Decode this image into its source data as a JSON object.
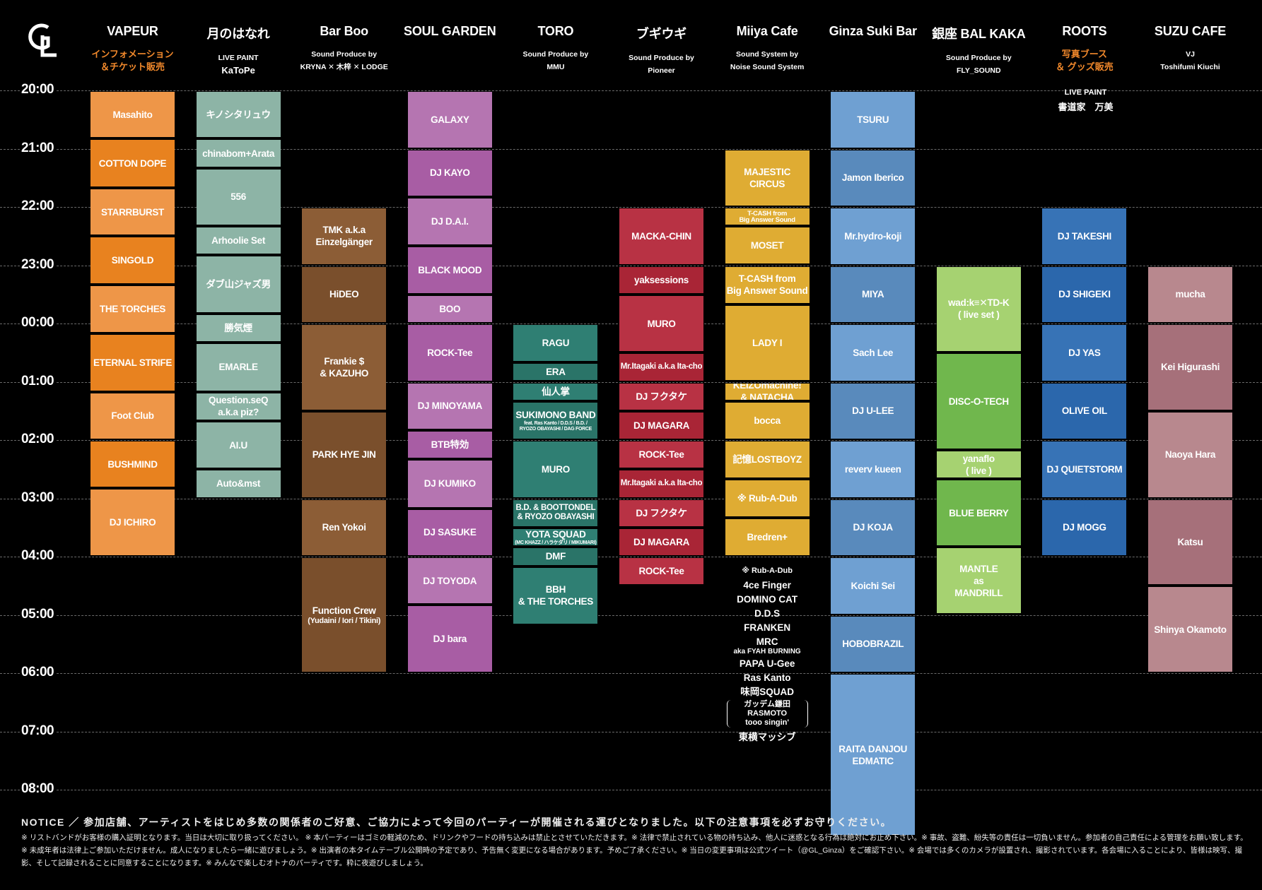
{
  "logo": "GL",
  "venues": [
    {
      "key": "vapeur",
      "name": "VAPEUR",
      "sub": "インフォメーション\n＆チケット販売",
      "sub_style": "orange",
      "color": "#e8821f",
      "light": "#ee9648"
    },
    {
      "key": "tsukinohanare",
      "name": "月のはなれ",
      "sub": "LIVE PAINT\nKaToPe",
      "sub_style": "paint",
      "color": "#8fb7a8"
    },
    {
      "key": "barboo",
      "name": "Bar Boo",
      "sub": "Sound Produce by\nKRYNA ✕ 木梓 ✕ LODGE",
      "sub_style": "small",
      "color": "#7a4f2c",
      "light": "#8c5d36"
    },
    {
      "key": "soulgarden",
      "name": "SOUL GARDEN",
      "sub": "",
      "color": "#a85da4",
      "light": "#b575b1"
    },
    {
      "key": "toro",
      "name": "TORO",
      "sub": "Sound Produce by\nMMU",
      "sub_style": "small",
      "color": "#2e7d71",
      "light": "#3a8c80"
    },
    {
      "key": "bugiugi",
      "name": "ブギウギ",
      "sub": "Sound Produce by\nPioneer",
      "sub_style": "small",
      "color": "#b3283a",
      "light": "#c44452"
    },
    {
      "key": "miiya",
      "name": "Miiya Cafe",
      "sub": "Sound System by\nNoise Sound System",
      "sub_style": "small",
      "color": "#dfac33",
      "light": "#e6bb4f"
    },
    {
      "key": "ginzasuki",
      "name": "Ginza Suki Bar",
      "sub": "",
      "color": "#6fa0d2",
      "light": "#85aedb"
    },
    {
      "key": "balkaka",
      "name": "銀座 BAL KAKA",
      "sub": "Sound Produce by\nFLY_SOUND",
      "sub_style": "small",
      "color": "#70b74d",
      "light": "#a6d271"
    },
    {
      "key": "roots",
      "name": "ROOTS",
      "sub": "写真ブース\n＆ グッズ販売",
      "sub_style": "orange",
      "color": "#2b67ac",
      "light": "#3773b6"
    },
    {
      "key": "suzu",
      "name": "SUZU CAFE",
      "sub": "VJ\nToshifumi Kiuchi",
      "sub_style": "small",
      "color": "#a6707a",
      "light": "#b8888e"
    }
  ],
  "roots_paint": {
    "label": "LIVE PAINT",
    "artist": "書道家　万美"
  },
  "times": [
    "20:00",
    "21:00",
    "22:00",
    "23:00",
    "00:00",
    "01:00",
    "02:00",
    "03:00",
    "04:00",
    "05:00",
    "06:00",
    "07:00",
    "08:00"
  ],
  "timetable": {
    "vapeur": [
      {
        "name": "Masahito",
        "start": 0,
        "end": 0.83,
        "shade": "light"
      },
      {
        "name": "COTTON DOPE",
        "start": 0.83,
        "end": 1.67
      },
      {
        "name": "STARRBURST",
        "start": 1.67,
        "end": 2.5,
        "shade": "light"
      },
      {
        "name": "SINGOLD",
        "start": 2.5,
        "end": 3.33
      },
      {
        "name": "THE TORCHES",
        "start": 3.33,
        "end": 4.17,
        "shade": "light"
      },
      {
        "name": "ETERNAL STRIFE",
        "start": 4.17,
        "end": 5.17
      },
      {
        "name": "Foot Club",
        "start": 5.17,
        "end": 6.0,
        "shade": "light"
      },
      {
        "name": "BUSHMIND",
        "start": 6.0,
        "end": 6.83
      },
      {
        "name": "DJ ICHIRO",
        "start": 6.83,
        "end": 8.0,
        "shade": "light"
      }
    ],
    "tsukinohanare": [
      {
        "name": "キノシタリュウ",
        "start": 0,
        "end": 0.83
      },
      {
        "name": "chinabom+Arata",
        "start": 0.83,
        "end": 1.33
      },
      {
        "name": "556",
        "start": 1.33,
        "end": 2.33
      },
      {
        "name": "Arhoolie Set",
        "start": 2.33,
        "end": 2.83
      },
      {
        "name": "ダブ山ジャズ男",
        "start": 2.83,
        "end": 3.83
      },
      {
        "name": "勝気煙",
        "start": 3.83,
        "end": 4.33
      },
      {
        "name": "EMARLE",
        "start": 4.33,
        "end": 5.17
      },
      {
        "name": "Question.seQ\na.k.a piz?",
        "start": 5.17,
        "end": 5.67
      },
      {
        "name": "AI.U",
        "start": 5.67,
        "end": 6.5
      },
      {
        "name": "Auto&mst",
        "start": 6.5,
        "end": 7.0
      }
    ],
    "barboo": [
      {
        "name": "TMK a.k.a\nEinzelgänger",
        "start": 2,
        "end": 3,
        "shade": "light"
      },
      {
        "name": "HiDEO",
        "start": 3,
        "end": 4
      },
      {
        "name": "Frankie $\n& KAZUHO",
        "start": 4,
        "end": 5.5,
        "shade": "light"
      },
      {
        "name": "PARK HYE JIN",
        "start": 5.5,
        "end": 7
      },
      {
        "name": "Ren Yokoi",
        "start": 7,
        "end": 8,
        "shade": "light"
      },
      {
        "name": "Function Crew",
        "sub": "(Yudaini / Iori / Tikini)",
        "start": 8,
        "end": 10
      }
    ],
    "soulgarden": [
      {
        "name": "GALAXY",
        "start": 0,
        "end": 1,
        "shade": "light"
      },
      {
        "name": "DJ KAYO",
        "start": 1,
        "end": 1.83
      },
      {
        "name": "DJ D.A.I.",
        "start": 1.83,
        "end": 2.67,
        "shade": "light"
      },
      {
        "name": "BLACK MOOD",
        "start": 2.67,
        "end": 3.5
      },
      {
        "name": "BOO",
        "start": 3.5,
        "end": 4,
        "shade": "light"
      },
      {
        "name": "ROCK-Tee",
        "start": 4,
        "end": 5
      },
      {
        "name": "DJ MINOYAMA",
        "start": 5,
        "end": 5.83,
        "shade": "light"
      },
      {
        "name": "BTB特効",
        "start": 5.83,
        "end": 6.33
      },
      {
        "name": "DJ KUMIKO",
        "start": 6.33,
        "end": 7.17,
        "shade": "light"
      },
      {
        "name": "DJ SASUKE",
        "start": 7.17,
        "end": 8
      },
      {
        "name": "DJ TOYODA",
        "start": 8,
        "end": 8.83,
        "shade": "light"
      },
      {
        "name": "DJ bara",
        "start": 8.83,
        "end": 10
      }
    ],
    "toro": [
      {
        "name": "RAGU",
        "start": 4,
        "end": 4.67
      },
      {
        "name": "ERA",
        "start": 4.67,
        "end": 5
      },
      {
        "name": "仙人掌",
        "start": 5,
        "end": 5.33
      },
      {
        "name": "SUKIMONO BAND",
        "sub": "feat. Ras Kanto / D.D.S / B.D. /\nRYOZO OBAYASHI / DAG FORCE",
        "start": 5.33,
        "end": 6
      },
      {
        "name": "MURO",
        "start": 6,
        "end": 7
      },
      {
        "name": "B.D. & BOOTTONDEL\n& RYOZO OBAYASHI",
        "start": 7,
        "end": 7.5,
        "small": true
      },
      {
        "name": "YOTA SQUAD",
        "sub": "(MC KHAZZ / ハラケダリ / MIKUMARI)",
        "start": 7.5,
        "end": 7.83
      },
      {
        "name": "DMF",
        "start": 7.83,
        "end": 8.17
      },
      {
        "name": "BBH\n& THE TORCHES",
        "start": 8.17,
        "end": 9.17
      }
    ],
    "bugiugi": [
      {
        "name": "MACKA-CHIN",
        "start": 2,
        "end": 3
      },
      {
        "name": "yaksessions",
        "start": 3,
        "end": 3.5
      },
      {
        "name": "MURO",
        "start": 3.5,
        "end": 4.5
      },
      {
        "name": "Mr.Itagaki a.k.a Ita-cho",
        "start": 4.5,
        "end": 5,
        "small": true
      },
      {
        "name": "DJ フクタケ",
        "start": 5,
        "end": 5.5
      },
      {
        "name": "DJ MAGARA",
        "start": 5.5,
        "end": 6
      },
      {
        "name": "ROCK-Tee",
        "start": 6,
        "end": 6.5
      },
      {
        "name": "Mr.Itagaki a.k.a Ita-cho",
        "start": 6.5,
        "end": 7,
        "small": true
      },
      {
        "name": "DJ フクタケ",
        "start": 7,
        "end": 7.5
      },
      {
        "name": "DJ MAGARA",
        "start": 7.5,
        "end": 8
      },
      {
        "name": "ROCK-Tee",
        "start": 8,
        "end": 8.5
      }
    ],
    "miiya": [
      {
        "name": "MAJESTIC\nCIRCUS",
        "start": 1,
        "end": 2
      },
      {
        "name": "T-CASH from\nBig Answer Sound",
        "start": 2,
        "end": 2.33,
        "tiny": true
      },
      {
        "name": "MOSET",
        "start": 2.33,
        "end": 3
      },
      {
        "name": "T-CASH from\nBig Answer Sound",
        "start": 3,
        "end": 3.67
      },
      {
        "name": "LADY I",
        "start": 3.67,
        "end": 5
      },
      {
        "name": "KEIZOmachine!\n& NATACHA",
        "start": 5,
        "end": 5.33
      },
      {
        "name": "bocca",
        "start": 5.33,
        "end": 6
      },
      {
        "name": "記憶LOSTBOYZ",
        "start": 6,
        "end": 6.67
      },
      {
        "name": "※ Rub-A-Dub",
        "start": 6.67,
        "end": 7.33
      },
      {
        "name": "Bredren+",
        "start": 7.33,
        "end": 8
      }
    ],
    "miiya_after": [
      {
        "name": "※ Rub-A-Dub",
        "small": true
      },
      {
        "name": "4ce Finger"
      },
      {
        "name": "DOMINO CAT"
      },
      {
        "name": "D.D.S"
      },
      {
        "name": "FRANKEN"
      },
      {
        "name": "MRC",
        "sub": "aka FYAH BURNING"
      },
      {
        "name": "PAPA U-Gee"
      },
      {
        "name": "Ras Kanto"
      },
      {
        "name": "味岡SQUAD"
      },
      {
        "name": "ガッデム鎌田\nRASMOTO\ntooo singin'",
        "bracket": true
      },
      {
        "name": "東横マッシブ"
      }
    ],
    "ginzasuki": [
      {
        "name": "TSURU",
        "start": 0,
        "end": 1
      },
      {
        "name": "Jamon Iberico",
        "start": 1,
        "end": 2,
        "shade": "dark"
      },
      {
        "name": "Mr.hydro-koji",
        "start": 2,
        "end": 3
      },
      {
        "name": "MIYA",
        "start": 3,
        "end": 4,
        "shade": "dark"
      },
      {
        "name": "Sach Lee",
        "start": 4,
        "end": 5
      },
      {
        "name": "DJ U-LEE",
        "start": 5,
        "end": 6,
        "shade": "dark"
      },
      {
        "name": "reverv kueen",
        "start": 6,
        "end": 7
      },
      {
        "name": "DJ KOJA",
        "start": 7,
        "end": 8,
        "shade": "dark"
      },
      {
        "name": "Koichi Sei",
        "start": 8,
        "end": 9
      },
      {
        "name": "HOBOBRAZIL",
        "start": 9,
        "end": 10,
        "shade": "dark"
      },
      {
        "name": "RAITA DANJOU\nEDMATIC",
        "start": 10,
        "end": 12.8
      }
    ],
    "balkaka": [
      {
        "name": "wad:k≡✕TD-K\n( live set )",
        "start": 3,
        "end": 4.5,
        "shade": "light"
      },
      {
        "name": "DISC-O-TECH",
        "start": 4.5,
        "end": 6.17
      },
      {
        "name": "yanaflo\n( live )",
        "start": 6.17,
        "end": 6.67,
        "shade": "light"
      },
      {
        "name": "BLUE BERRY",
        "start": 6.67,
        "end": 7.83
      },
      {
        "name": "MANTLE\nas\nMANDRILL",
        "start": 7.83,
        "end": 9,
        "shade": "light"
      }
    ],
    "roots": [
      {
        "name": "DJ TAKESHI",
        "start": 2,
        "end": 3,
        "shade": "light"
      },
      {
        "name": "DJ SHIGEKI",
        "start": 3,
        "end": 4
      },
      {
        "name": "DJ YAS",
        "start": 4,
        "end": 5,
        "shade": "light"
      },
      {
        "name": "OLIVE OIL",
        "start": 5,
        "end": 6
      },
      {
        "name": "DJ QUIETSTORM",
        "start": 6,
        "end": 7,
        "shade": "light"
      },
      {
        "name": "DJ MOGG",
        "start": 7,
        "end": 8
      }
    ],
    "suzu": [
      {
        "name": "mucha",
        "start": 3,
        "end": 4,
        "shade": "light"
      },
      {
        "name": "Kei Higurashi",
        "start": 4,
        "end": 5.5
      },
      {
        "name": "Naoya Hara",
        "start": 5.5,
        "end": 7,
        "shade": "light"
      },
      {
        "name": "Katsu",
        "start": 7,
        "end": 8.5
      },
      {
        "name": "Shinya Okamoto",
        "start": 8.5,
        "end": 10,
        "shade": "light"
      }
    ]
  },
  "notice": {
    "title": "NOTICE ／ 参加店舗、アーティストをはじめ多数の関係者のご好意、ご協力によって今回のパーティーが開催される運びとなりました。以下の注意事項を必ずお守りください。",
    "body": "※ リストバンドがお客様の購入証明となります。当日は大切に取り扱ってください。 ※ 本パーティーはゴミの軽減のため、ドリンクやフードの持ち込みは禁止とさせていただきます。※ 法律で禁止されている物の持ち込み、他人に迷惑となる行為は絶対にお止め下さい。※ 事故、盗難、紛失等の責任は一切負いません。参加者の自己責任による管理をお願い致します。※ 未成年者は法律上ご参加いただけません。成人になりましたら一緒に遊びましょう。※ 出演者の本タイムテーブル公開時の予定であり、予告無く変更になる場合があります。予めご了承ください。※ 当日の変更事項は公式ツイート（@GL_Ginza）をご確認下さい。※ 会場では多くのカメラが設置され、撮影されています。各会場に入ることにより、皆様は映写、撮影、そして記録されることに同意することになります。※ みんなで楽しむオトナのパーティです。粋に夜遊びしましょう。"
  }
}
